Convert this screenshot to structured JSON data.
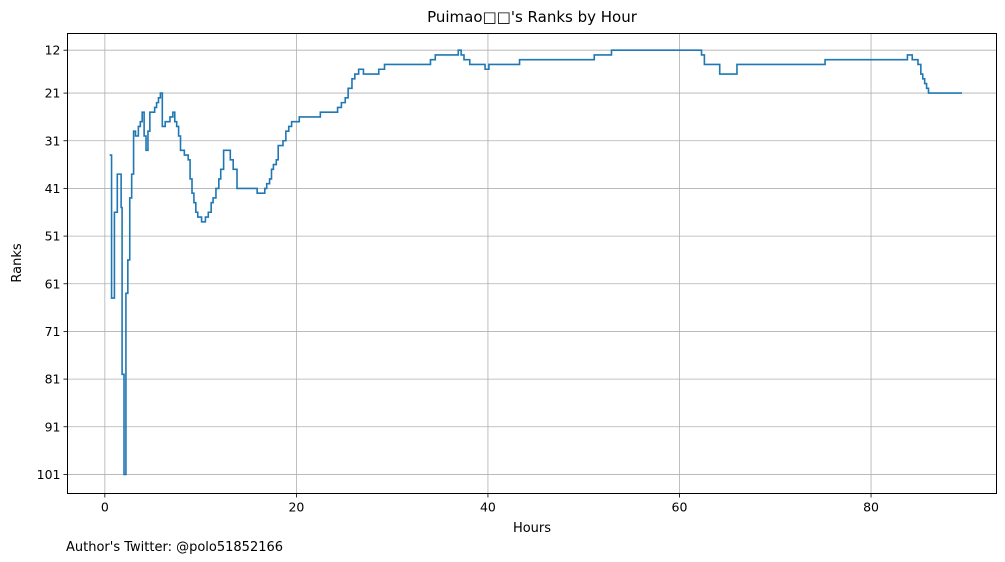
{
  "footer": {
    "author": "Author's Twitter: @polo51852166"
  },
  "chart_data": {
    "type": "line",
    "title": "Puimao□□'s Ranks by Hour",
    "xlabel": "Hours",
    "ylabel": "Ranks",
    "xlim": [
      -3.9,
      93.1
    ],
    "ylim": [
      105,
      8.5
    ],
    "y_inverted": true,
    "grid": true,
    "step": "post",
    "line_color": "#1f77b4",
    "x_ticks": [
      0,
      20,
      40,
      60,
      80
    ],
    "y_ticks": [
      12,
      21,
      31,
      41,
      51,
      61,
      71,
      81,
      91,
      101
    ],
    "series": [
      {
        "x": [
          0.5,
          0.7,
          1.0,
          1.3,
          1.7,
          1.8,
          2.0,
          2.2,
          2.4,
          2.6,
          2.8,
          3.0,
          3.2,
          3.5,
          3.7,
          3.9,
          4.1,
          4.3,
          4.5,
          4.7,
          5.2,
          5.4,
          5.6,
          5.8,
          6.0,
          6.1,
          6.3,
          6.8,
          7.1,
          7.3,
          7.5,
          7.7,
          7.9,
          8.3,
          8.7,
          8.9,
          9.1,
          9.3,
          9.5,
          9.7,
          10.1,
          10.5,
          10.8,
          11.1,
          11.3,
          11.6,
          11.9,
          12.1,
          12.4,
          12.6,
          13.1,
          13.4,
          13.8,
          14.2,
          15.9,
          16.2,
          16.7,
          16.9,
          17.2,
          17.4,
          17.6,
          17.9,
          18.1,
          18.4,
          18.6,
          18.9,
          19.2,
          19.5,
          20.3,
          22.5,
          24.3,
          24.7,
          25.1,
          25.4,
          25.8,
          26.1,
          26.5,
          27.0,
          28.2,
          28.6,
          29.2,
          32.5,
          34.0,
          34.5,
          36.9,
          37.2,
          37.5,
          38.1,
          39.7,
          40.1,
          43.3,
          51.1,
          52.9,
          62.3,
          62.6,
          64.2,
          66.0,
          75.2,
          83.8,
          84.3,
          84.9,
          85.2,
          85.4,
          85.6,
          85.8,
          86.0,
          89.5
        ],
        "values": [
          34,
          64,
          46,
          38,
          45,
          80,
          101,
          63,
          56,
          43,
          38,
          29,
          30,
          28,
          27,
          25,
          30,
          33,
          29,
          25,
          24,
          23,
          22,
          21,
          28,
          28,
          27,
          26,
          25,
          27,
          28,
          30,
          33,
          34,
          35,
          39,
          42,
          44,
          46,
          47,
          48,
          47,
          46,
          44,
          43,
          41,
          39,
          37,
          33,
          33,
          35,
          37,
          41,
          41,
          42,
          42,
          41,
          40,
          39,
          37,
          36,
          35,
          32,
          32,
          31,
          29,
          28,
          27,
          26,
          25,
          24,
          23,
          22,
          20,
          18,
          17,
          16,
          17,
          17,
          16,
          15,
          15,
          14,
          13,
          12,
          13,
          14,
          15,
          16,
          15,
          14,
          13,
          12,
          13,
          15,
          17,
          15,
          14,
          13,
          14,
          15,
          17,
          18,
          19,
          20,
          21,
          21
        ]
      }
    ]
  }
}
